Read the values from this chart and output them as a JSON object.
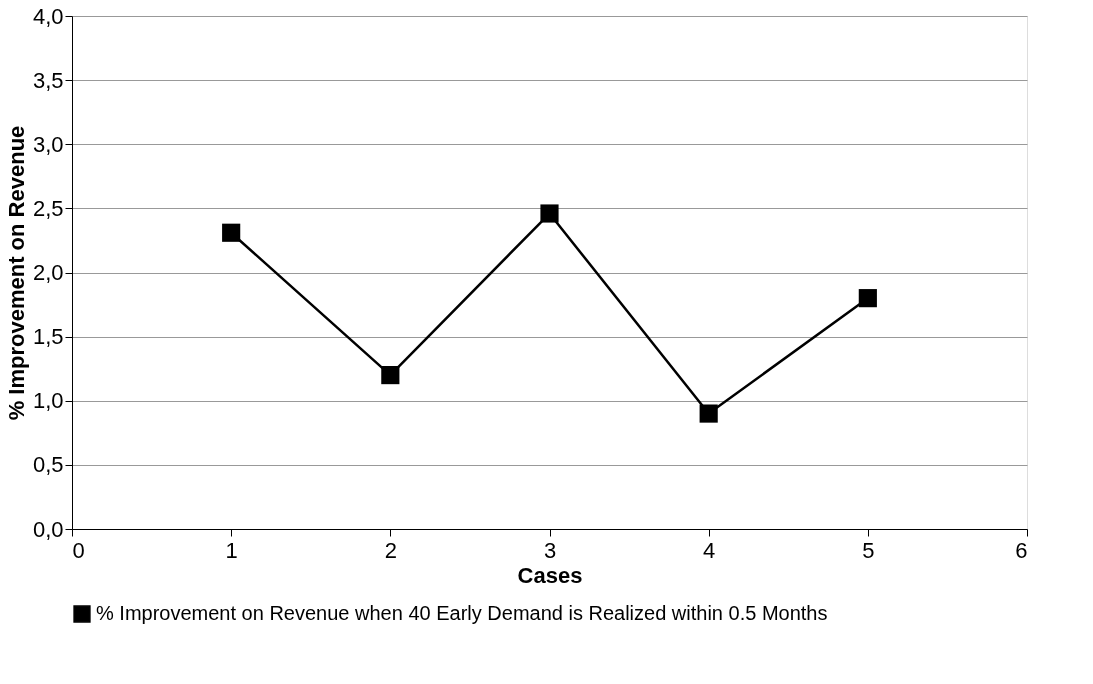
{
  "chart_data": {
    "type": "line",
    "xlabel": "Cases",
    "ylabel": "% Improvement on Revenue",
    "x": [
      1,
      2,
      3,
      4,
      5
    ],
    "series": [
      {
        "name": "% Improvement on Revenue when 40 Early Demand is  Realized within 0.5 Months",
        "color": "#000000",
        "values": [
          2.31,
          1.2,
          2.46,
          0.9,
          1.8
        ]
      }
    ],
    "xlim": [
      0,
      6
    ],
    "xticks": [
      0,
      1,
      2,
      3,
      4,
      5,
      6
    ],
    "ylim": [
      0,
      4
    ],
    "yticks": [
      {
        "value": 0,
        "label": "0,0"
      },
      {
        "value": 0.5,
        "label": "0,5"
      },
      {
        "value": 1,
        "label": "1,0"
      },
      {
        "value": 1.5,
        "label": "1,5"
      },
      {
        "value": 2,
        "label": "2,0"
      },
      {
        "value": 2.5,
        "label": "2,5"
      },
      {
        "value": 3,
        "label": "3,0"
      },
      {
        "value": 3.5,
        "label": "3,5"
      },
      {
        "value": 4,
        "label": "4,0"
      }
    ],
    "grid": "y",
    "legend": "bottom",
    "marker": "square",
    "line_style": "solid"
  }
}
